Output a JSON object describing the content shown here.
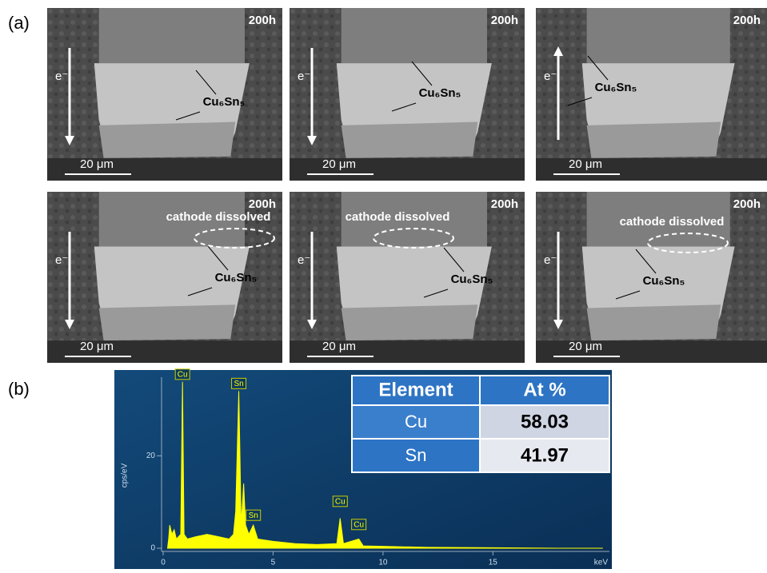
{
  "panel_a": {
    "label": "(a)",
    "panels": [
      {
        "time": "200h",
        "electron": "e⁻",
        "phase": "Cu₆Sn₅",
        "scale": "20 μm"
      },
      {
        "time": "200h",
        "electron": "e⁻",
        "phase": "Cu₆Sn₅",
        "scale": "20 μm"
      },
      {
        "time": "200h",
        "electron": "e⁻",
        "phase": "Cu₆Sn₅",
        "scale": "20 μm"
      },
      {
        "time": "200h",
        "electron": "e⁻",
        "phase": "Cu₆Sn₅",
        "scale": "20 μm",
        "note": "cathode dissolved"
      },
      {
        "time": "200h",
        "electron": "e⁻",
        "phase": "Cu₆Sn₅",
        "scale": "20 μm",
        "note": "cathode dissolved"
      },
      {
        "time": "200h",
        "electron": "e⁻",
        "phase": "Cu₆Sn₅",
        "scale": "20 μm",
        "note": "cathode dissolved"
      }
    ]
  },
  "panel_b": {
    "label": "(b)",
    "spectrum": {
      "type": "area",
      "y_label": "cps/eV",
      "x_label": "keV",
      "color": "#ffff00",
      "xlim": [
        0,
        20.3
      ],
      "ylim": [
        0,
        37
      ],
      "xticks": [
        0,
        5,
        10,
        15
      ],
      "yticks": [
        0,
        20
      ],
      "x": [
        0.2,
        0.25,
        0.3,
        0.4,
        0.5,
        0.6,
        0.8,
        0.88,
        0.95,
        1.1,
        1.5,
        2,
        2.5,
        3,
        3.2,
        3.3,
        3.44,
        3.55,
        3.66,
        3.75,
        3.9,
        4.1,
        4.3,
        5,
        6,
        7,
        7.9,
        8.05,
        8.2,
        8.9,
        9.1,
        10,
        12,
        15,
        18,
        20
      ],
      "y": [
        0,
        2,
        5,
        3,
        4,
        2,
        3,
        36,
        3,
        2,
        2.5,
        3,
        2.5,
        2,
        3,
        8,
        34,
        5,
        14,
        5,
        3,
        5,
        2,
        1.5,
        1,
        0.8,
        1,
        6.5,
        1,
        2,
        0.5,
        0.4,
        0.2,
        0.1,
        0,
        0
      ],
      "peaks": [
        {
          "label": "Cu",
          "x": 0.88,
          "y": 36
        },
        {
          "label": "Sn",
          "x": 3.44,
          "y": 34
        },
        {
          "label": "Sn",
          "x": 4.1,
          "y": 5.5
        },
        {
          "label": "Cu",
          "x": 8.05,
          "y": 8.5
        },
        {
          "label": "Cu",
          "x": 8.9,
          "y": 3.5
        }
      ]
    },
    "table": {
      "header": [
        "Element",
        "At %"
      ],
      "rows": [
        [
          "Cu",
          58.03
        ],
        [
          "Sn",
          41.97
        ]
      ]
    }
  }
}
